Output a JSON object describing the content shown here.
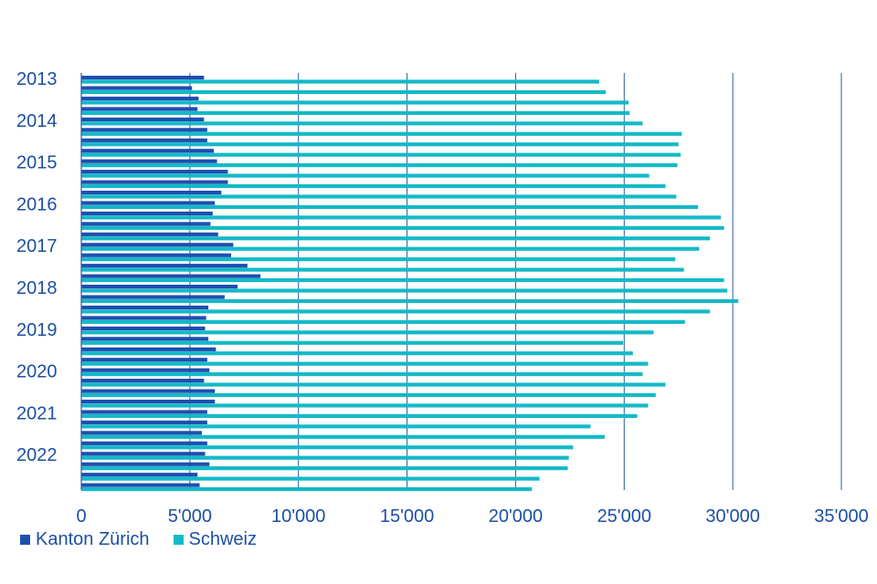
{
  "chart_data": {
    "type": "bar",
    "orientation": "horizontal",
    "title": "",
    "xlabel": "",
    "ylabel": "",
    "xlim": [
      0,
      35000
    ],
    "x_ticks": [
      0,
      5000,
      10000,
      15000,
      20000,
      25000,
      30000,
      35000
    ],
    "x_tick_labels": [
      "0",
      "5'000",
      "10'000",
      "15'000",
      "20'000",
      "25'000",
      "30'000",
      "35'000"
    ],
    "year_labels": [
      "2013",
      "2014",
      "2015",
      "2016",
      "2017",
      "2018",
      "2019",
      "2020",
      "2021",
      "2022"
    ],
    "grid": "vertical",
    "legend_position": "bottom-left",
    "colors": {
      "kanton_zuerich": "#1d4fb0",
      "schweiz": "#14b9c8",
      "text": "#1d4fa3",
      "grid": "#2b5aa8"
    },
    "series": [
      {
        "name": "Kanton Zürich",
        "values": [
          5650,
          5100,
          5400,
          5350,
          5650,
          5800,
          5800,
          6100,
          6250,
          6750,
          6750,
          6450,
          6150,
          6050,
          5950,
          6300,
          7000,
          6900,
          7650,
          8250,
          7200,
          6600,
          5850,
          5750,
          5700,
          5850,
          6200,
          5800,
          5900,
          5650,
          6150,
          6150,
          5800,
          5800,
          5550,
          5800,
          5700,
          5900,
          5350,
          5450
        ]
      },
      {
        "name": "Schweiz",
        "values": [
          23850,
          24150,
          25200,
          25250,
          25850,
          27650,
          27500,
          27600,
          27450,
          26150,
          26900,
          27400,
          28400,
          29450,
          29600,
          28950,
          28450,
          27350,
          27750,
          29600,
          29750,
          30250,
          28950,
          27800,
          26350,
          24950,
          25400,
          26100,
          25850,
          26900,
          26450,
          26100,
          25600,
          23450,
          24100,
          22650,
          22450,
          22400,
          21100,
          20750
        ]
      }
    ]
  },
  "legend": {
    "items": [
      {
        "label": "Kanton Zürich",
        "color": "#1d4fb0"
      },
      {
        "label": "Schweiz",
        "color": "#14b9c8"
      }
    ]
  }
}
